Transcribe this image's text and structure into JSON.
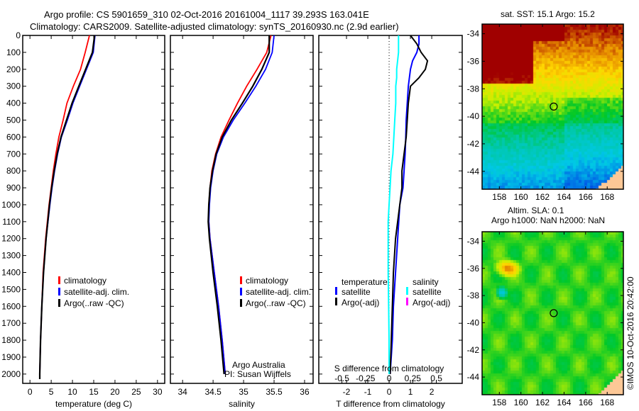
{
  "title": {
    "line1": "Argo profile: CS 5901659_310 02-Oct-2016 20161004_1117 39.293S 163.041E",
    "line2": "Climatology: CARS2009. Satellite-adjusted climatology: synTS_20160930.nc (2.9d earlier)"
  },
  "colors": {
    "climatology": "#ff0000",
    "satellite": "#0000ff",
    "argo": "#000000",
    "sal_satellite": "#00ffff",
    "sal_argo": "#ff00ff"
  },
  "credits": {
    "argo": "Argo Australia",
    "pi": "PI: Susan Wijffels",
    "copyright": "©IMOS 10-Oct-2016 20:42:00"
  },
  "chart_data": [
    {
      "type": "line",
      "name": "temperature-profile",
      "xlabel": "temperature (deg C)",
      "ylabel": "",
      "xlim": [
        -1.7,
        31.7
      ],
      "ylim": [
        2055,
        0
      ],
      "xticks": [
        0,
        5,
        10,
        15,
        20,
        25,
        30
      ],
      "yticks": [
        0,
        100,
        200,
        300,
        400,
        500,
        600,
        700,
        800,
        900,
        1000,
        1100,
        1200,
        1300,
        1400,
        1500,
        1600,
        1700,
        1800,
        1900,
        2000
      ],
      "legend": [
        "climatology",
        "satellite-adj. clim.",
        "Argo(..raw -QC)"
      ],
      "depth": [
        0,
        100,
        200,
        300,
        400,
        500,
        600,
        700,
        800,
        900,
        1000,
        1200,
        1400,
        1600,
        1800,
        2000,
        2030
      ],
      "series": [
        {
          "name": "climatology",
          "color": "#ff0000",
          "values": [
            14.0,
            13.0,
            11.9,
            10.2,
            8.7,
            7.8,
            6.8,
            6.1,
            5.5,
            5.0,
            4.5,
            3.7,
            3.1,
            2.8,
            2.5,
            2.3,
            2.3
          ]
        },
        {
          "name": "satellite-adj. clim.",
          "color": "#0000ff",
          "values": [
            15.3,
            14.9,
            13.3,
            11.7,
            10.1,
            8.8,
            7.4,
            6.5,
            5.8,
            5.2,
            4.7,
            3.8,
            3.2,
            2.8,
            2.5,
            2.3,
            2.3
          ]
        },
        {
          "name": "Argo(..raw -QC)",
          "color": "#000000",
          "values": [
            15.2,
            14.7,
            13.1,
            11.5,
            9.9,
            8.6,
            7.3,
            6.4,
            5.7,
            5.1,
            4.6,
            3.8,
            3.2,
            2.8,
            2.5,
            2.3,
            2.3
          ]
        }
      ]
    },
    {
      "type": "line",
      "name": "salinity-profile",
      "xlabel": "salinity",
      "xlim": [
        33.8,
        36.14
      ],
      "ylim": [
        2055,
        0
      ],
      "xticks": [
        34,
        34.5,
        35,
        35.5,
        36
      ],
      "legend": [
        "climatology",
        "satellite-adj. clim.",
        "Argo(..raw -QC)"
      ],
      "depth": [
        0,
        100,
        200,
        300,
        400,
        500,
        600,
        700,
        800,
        900,
        1000,
        1100,
        1200,
        1400,
        1600,
        1800,
        2000
      ],
      "series": [
        {
          "name": "climatology",
          "color": "#ff0000",
          "values": [
            35.45,
            35.38,
            35.22,
            35.05,
            34.9,
            34.76,
            34.63,
            34.54,
            34.48,
            34.45,
            34.43,
            34.43,
            34.45,
            34.52,
            34.59,
            34.65,
            34.7
          ]
        },
        {
          "name": "satellite-adj. clim.",
          "color": "#0000ff",
          "values": [
            35.5,
            35.47,
            35.36,
            35.2,
            35.02,
            34.83,
            34.67,
            34.56,
            34.5,
            34.46,
            34.44,
            34.43,
            34.45,
            34.52,
            34.59,
            34.65,
            34.7
          ]
        },
        {
          "name": "Argo(..raw -QC)",
          "color": "#000000",
          "values": [
            35.42,
            35.42,
            35.3,
            35.15,
            34.98,
            34.8,
            34.65,
            34.55,
            34.49,
            34.45,
            34.43,
            34.42,
            34.44,
            34.5,
            34.57,
            34.63,
            34.68
          ]
        }
      ]
    },
    {
      "type": "line",
      "name": "difference-profile",
      "xlabel": "T difference from climatology",
      "x2label": "S difference from climatology",
      "xlim": [
        -3.3,
        3.43
      ],
      "ylim": [
        2055,
        0
      ],
      "xticks": [
        -2,
        -1,
        0,
        1,
        2
      ],
      "x2ticks": [
        -0.5,
        -0.25,
        0,
        0.25,
        0.5
      ],
      "x2tick_labels": [
        "-0.5",
        "-0.25",
        "0",
        "0.25",
        "0.5"
      ],
      "legend_temperature": {
        "title": "temperature",
        "items": [
          "satellite",
          "Argo(-adj)"
        ]
      },
      "legend_salinity": {
        "title": "salinity",
        "items": [
          "satellite",
          "Argo(-adj)"
        ]
      },
      "depth": [
        0,
        50,
        100,
        150,
        200,
        250,
        300,
        400,
        500,
        600,
        700,
        800,
        900,
        1000,
        1100,
        1200,
        1400,
        1600,
        1800,
        2000
      ],
      "series": [
        {
          "name": "T satellite",
          "color": "#0000ff",
          "units": "T",
          "values": [
            1.4,
            1.4,
            1.3,
            1.1,
            1.0,
            0.95,
            0.9,
            0.85,
            0.8,
            0.78,
            0.75,
            0.7,
            0.65,
            0.5,
            0.45,
            0.4,
            0.3,
            0.2,
            0.15,
            0.05
          ]
        },
        {
          "name": "T Argo(-adj)",
          "color": "#000000",
          "units": "T",
          "values": [
            1.0,
            1.3,
            1.5,
            1.8,
            1.7,
            1.4,
            1.0,
            0.9,
            0.85,
            0.8,
            0.7,
            0.6,
            0.6,
            0.5,
            0.4,
            0.3,
            0.2,
            0.15,
            0.1,
            0.05
          ]
        },
        {
          "name": "S satellite",
          "color": "#00ffff",
          "units": "S",
          "values": [
            0.1,
            0.1,
            0.1,
            0.09,
            0.08,
            0.08,
            0.07,
            0.07,
            0.06,
            0.05,
            0.04,
            0.02,
            0.01,
            0.0,
            -0.01,
            -0.01,
            -0.01,
            -0.005,
            0.0,
            0.0
          ]
        }
      ]
    },
    {
      "type": "heatmap",
      "name": "sst-map",
      "title": "sat. SST: 15.1  Argo: 15.2",
      "xlim": [
        156.4,
        169.5
      ],
      "ylim": [
        -45.3,
        -33.3
      ],
      "xticks": [
        158,
        160,
        162,
        164,
        166,
        168
      ],
      "yticks": [
        -34,
        -36,
        -38,
        -40,
        -42,
        -44
      ],
      "marker": {
        "lon": 163.041,
        "lat": -39.293
      }
    },
    {
      "type": "heatmap",
      "name": "sla-map",
      "title": "Altim. SLA: 0.1",
      "subtitle": "Argo h1000: NaN h2000: NaN",
      "xlim": [
        156.4,
        169.5
      ],
      "ylim": [
        -45.3,
        -33.3
      ],
      "xticks": [
        158,
        160,
        162,
        164,
        166,
        168
      ],
      "yticks": [
        -34,
        -36,
        -38,
        -40,
        -42,
        -44
      ],
      "marker": {
        "lon": 163.041,
        "lat": -39.293
      }
    }
  ]
}
